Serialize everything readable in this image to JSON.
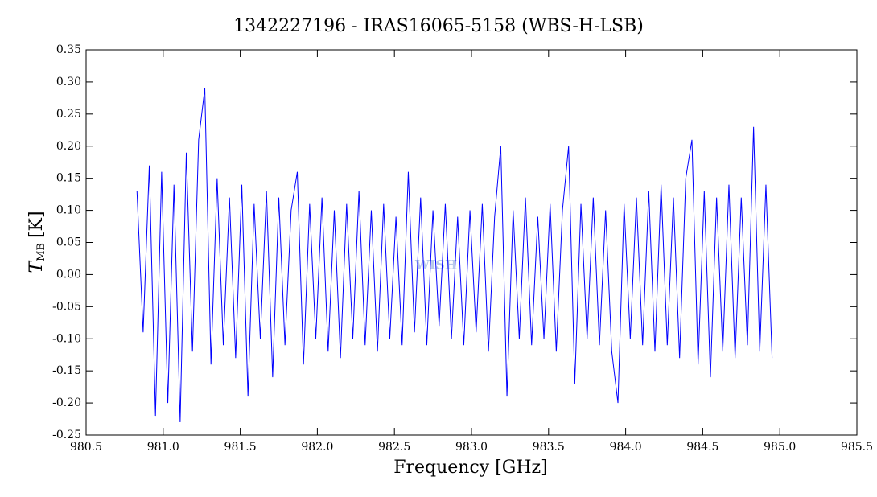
{
  "chart_data": {
    "type": "line",
    "title": "1342227196 - IRAS16065-5158 (WBS-H-LSB)",
    "xlabel": "Frequency [GHz]",
    "ylabel": {
      "main": "T",
      "sub": "MB",
      "unit": "[K]"
    },
    "watermark": "WISH",
    "xlim": [
      980.5,
      985.5
    ],
    "ylim": [
      -0.25,
      0.35
    ],
    "xticks": [
      980.5,
      {
        "value": 981,
        "label": "981.0"
      },
      981.5,
      {
        "value": 982,
        "label": "982.0"
      },
      982.5,
      {
        "value": 983,
        "label": "983.0"
      },
      983.5,
      {
        "value": 984,
        "label": "984.0"
      },
      984.5,
      {
        "value": 985,
        "label": "985.0"
      },
      985.5
    ],
    "yticks": [
      0.35,
      {
        "value": 0.3,
        "label": "0.30"
      },
      0.25,
      {
        "value": 0.2,
        "label": "0.20"
      },
      0.15,
      {
        "value": 0.1,
        "label": "0.10"
      },
      0.05,
      {
        "value": 0,
        "label": "0.00"
      },
      -0.05,
      {
        "value": -0.1,
        "label": "-0.10"
      },
      -0.15,
      {
        "value": -0.2,
        "label": "-0.20"
      },
      -0.25
    ],
    "grid": false,
    "x": [
      980.83,
      980.87,
      980.91,
      980.95,
      980.99,
      981.03,
      981.07,
      981.11,
      981.15,
      981.19,
      981.23,
      981.27,
      981.31,
      981.35,
      981.39,
      981.43,
      981.47,
      981.51,
      981.55,
      981.59,
      981.63,
      981.67,
      981.71,
      981.75,
      981.79,
      981.83,
      981.87,
      981.91,
      981.95,
      981.99,
      982.03,
      982.07,
      982.11,
      982.15,
      982.19,
      982.23,
      982.27,
      982.31,
      982.35,
      982.39,
      982.43,
      982.47,
      982.51,
      982.55,
      982.59,
      982.63,
      982.67,
      982.71,
      982.75,
      982.79,
      982.83,
      982.87,
      982.91,
      982.95,
      982.99,
      983.03,
      983.07,
      983.11,
      983.15,
      983.19,
      983.23,
      983.27,
      983.31,
      983.35,
      983.39,
      983.43,
      983.47,
      983.51,
      983.55,
      983.59,
      983.63,
      983.67,
      983.71,
      983.75,
      983.79,
      983.83,
      983.87,
      983.91,
      983.95,
      983.99,
      984.03,
      984.07,
      984.11,
      984.15,
      984.19,
      984.23,
      984.27,
      984.31,
      984.35,
      984.39,
      984.43,
      984.47,
      984.51,
      984.55,
      984.59,
      984.63,
      984.67,
      984.71,
      984.75,
      984.79,
      984.83,
      984.87,
      984.91,
      984.95
    ],
    "series": [
      {
        "color": "#0000ff",
        "values": [
          0.13,
          -0.09,
          0.17,
          -0.22,
          0.16,
          -0.2,
          0.14,
          -0.23,
          0.19,
          -0.12,
          0.21,
          0.29,
          -0.14,
          0.15,
          -0.11,
          0.12,
          -0.13,
          0.14,
          -0.19,
          0.11,
          -0.1,
          0.13,
          -0.16,
          0.12,
          -0.11,
          0.1,
          0.16,
          -0.14,
          0.11,
          -0.1,
          0.12,
          -0.12,
          0.1,
          -0.13,
          0.11,
          -0.1,
          0.13,
          -0.11,
          0.1,
          -0.12,
          0.11,
          -0.1,
          0.09,
          -0.11,
          0.16,
          -0.09,
          0.12,
          -0.11,
          0.1,
          -0.08,
          0.11,
          -0.1,
          0.09,
          -0.11,
          0.1,
          -0.09,
          0.11,
          -0.12,
          0.09,
          0.2,
          -0.19,
          0.1,
          -0.1,
          0.12,
          -0.11,
          0.09,
          -0.1,
          0.11,
          -0.12,
          0.1,
          0.2,
          -0.17,
          0.11,
          -0.1,
          0.12,
          -0.11,
          0.1,
          -0.12,
          -0.2,
          0.11,
          -0.1,
          0.12,
          -0.11,
          0.13,
          -0.12,
          0.14,
          -0.11,
          0.12,
          -0.13,
          0.15,
          0.21,
          -0.14,
          0.13,
          -0.16,
          0.12,
          -0.12,
          0.14,
          -0.13,
          0.12,
          -0.11,
          0.23,
          -0.12,
          0.14,
          -0.13
        ]
      }
    ]
  }
}
